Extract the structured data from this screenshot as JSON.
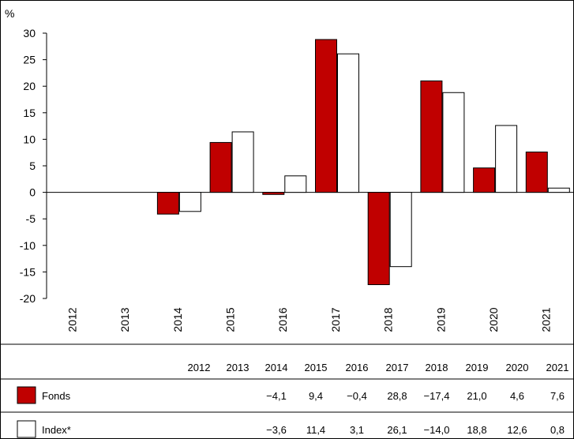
{
  "chart_data": {
    "type": "bar",
    "unit_label": "%",
    "categories": [
      "2012",
      "2013",
      "2014",
      "2015",
      "2016",
      "2017",
      "2018",
      "2019",
      "2020",
      "2021"
    ],
    "ylim": [
      -20,
      30
    ],
    "yticks": [
      "30",
      "25",
      "20",
      "15",
      "10",
      "5",
      "0",
      "-5",
      "-10",
      "-15",
      "-20"
    ],
    "grid": false,
    "series": [
      {
        "name": "Fonds",
        "color": "#c00000",
        "values": [
          null,
          null,
          -4.1,
          9.4,
          -0.4,
          28.8,
          -17.4,
          21.0,
          4.6,
          7.6
        ],
        "labels": [
          "",
          "",
          "−4,1",
          "9,4",
          "−0,4",
          "28,8",
          "−17,4",
          "21,0",
          "4,6",
          "7,6"
        ]
      },
      {
        "name": "Index*",
        "color": "#ffffff",
        "values": [
          null,
          null,
          -3.6,
          11.4,
          3.1,
          26.1,
          -14.0,
          18.8,
          12.6,
          0.8
        ],
        "labels": [
          "",
          "",
          "−3,6",
          "11,4",
          "3,1",
          "26,1",
          "−14,0",
          "18,8",
          "12,6",
          "0,8"
        ]
      }
    ]
  }
}
